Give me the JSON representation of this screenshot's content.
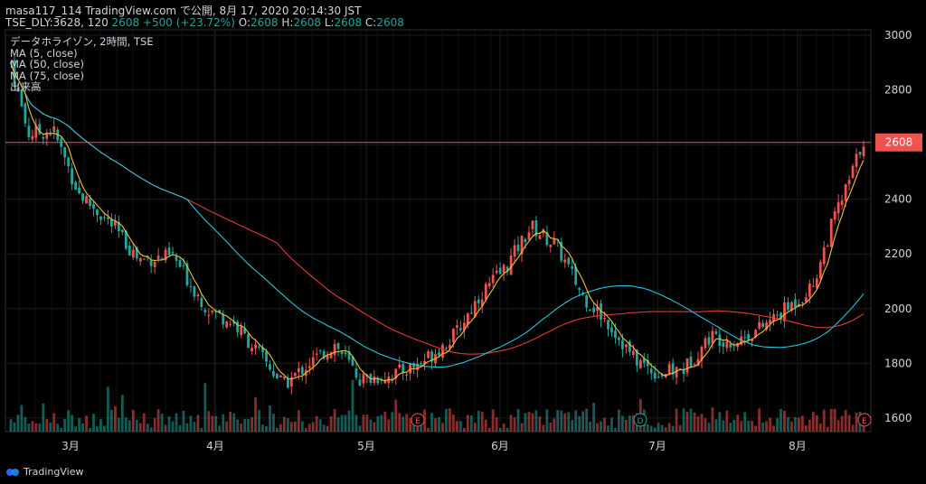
{
  "header": {
    "line1": "masa117_114 TradingView.com で公開, 8月 17, 2020 20:14:30 JST",
    "symbol_prefix": "TSE_DLY:3628, 120",
    "close_value": "2608",
    "change": "+500 (+23.72%)",
    "o_label": "O:",
    "o_value": "2608",
    "h_label": "H:",
    "h_value": "2608",
    "l_label": "L:",
    "l_value": "2608",
    "c_label": "C:",
    "c_value": "2608"
  },
  "legend": {
    "title": "データホライゾン, 2時間, TSE",
    "ma5": "MA (5, close)",
    "ma50": "MA (50, close)",
    "ma75": "MA (75, close)",
    "volume": "出来高"
  },
  "brand": {
    "name": "TradingView"
  },
  "colors": {
    "up": "#ef5350",
    "down": "#26a69a",
    "ma5": "#e8c440",
    "ma50": "#26c6da",
    "ma75": "#e53935",
    "price_line": "#ef5350",
    "background": "#000000",
    "grid": "#1c1c1c"
  },
  "chart_data": {
    "type": "candlestick",
    "y_ticks": [
      3000,
      2800,
      2600,
      2400,
      2200,
      2000,
      1800,
      1600
    ],
    "ylim": [
      1550,
      3020
    ],
    "x_labels": [
      "3月",
      "4月",
      "5月",
      "6月",
      "7月",
      "8月"
    ],
    "current_price": 2608,
    "event_markers": [
      "E",
      "D",
      "E"
    ],
    "price_path": [
      [
        0,
        2900
      ],
      [
        0.02,
        2640
      ],
      [
        0.05,
        2650
      ],
      [
        0.08,
        2420
      ],
      [
        0.12,
        2300
      ],
      [
        0.15,
        2180
      ],
      [
        0.19,
        2190
      ],
      [
        0.23,
        2000
      ],
      [
        0.26,
        1950
      ],
      [
        0.29,
        1840
      ],
      [
        0.32,
        1720
      ],
      [
        0.35,
        1800
      ],
      [
        0.38,
        1870
      ],
      [
        0.41,
        1740
      ],
      [
        0.45,
        1760
      ],
      [
        0.48,
        1800
      ],
      [
        0.52,
        1900
      ],
      [
        0.55,
        2050
      ],
      [
        0.58,
        2150
      ],
      [
        0.61,
        2300
      ],
      [
        0.64,
        2230
      ],
      [
        0.67,
        2050
      ],
      [
        0.7,
        1950
      ],
      [
        0.73,
        1820
      ],
      [
        0.76,
        1760
      ],
      [
        0.79,
        1780
      ],
      [
        0.82,
        1900
      ],
      [
        0.85,
        1880
      ],
      [
        0.88,
        1930
      ],
      [
        0.91,
        2000
      ],
      [
        0.94,
        2080
      ],
      [
        0.965,
        2330
      ],
      [
        0.98,
        2440
      ],
      [
        1.0,
        2620
      ]
    ]
  }
}
